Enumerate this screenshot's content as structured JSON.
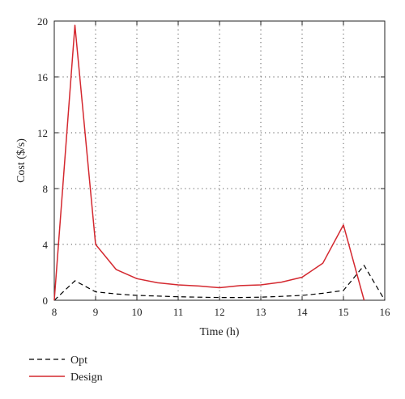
{
  "chart_data": {
    "type": "line",
    "title": "",
    "xlabel": "Time (h)",
    "ylabel": "Cost ($/s)",
    "xlim": [
      8,
      16
    ],
    "ylim": [
      0,
      20
    ],
    "xticks": [
      8,
      9,
      10,
      11,
      12,
      13,
      14,
      15,
      16
    ],
    "yticks": [
      0,
      4,
      8,
      12,
      16,
      20
    ],
    "grid": true,
    "legend_position": "below-left",
    "series": [
      {
        "name": "Opt",
        "color": "#000000",
        "style": "dashed",
        "x": [
          8,
          8.5,
          9,
          9.5,
          10,
          10.5,
          11,
          11.5,
          12,
          12.5,
          13,
          13.5,
          14,
          14.5,
          15,
          15.5,
          16
        ],
        "y": [
          0,
          1.4,
          0.6,
          0.45,
          0.35,
          0.3,
          0.25,
          0.22,
          0.2,
          0.2,
          0.22,
          0.28,
          0.35,
          0.5,
          0.7,
          2.5,
          0
        ]
      },
      {
        "name": "Design",
        "color": "#d4282f",
        "style": "solid",
        "x": [
          8,
          8.5,
          9,
          9.5,
          10,
          10.5,
          11,
          11.5,
          12,
          12.5,
          13,
          13.5,
          14,
          14.5,
          15,
          15.5
        ],
        "y": [
          0,
          19.7,
          4.0,
          2.2,
          1.55,
          1.25,
          1.1,
          1.02,
          0.9,
          1.05,
          1.1,
          1.3,
          1.65,
          2.65,
          5.4,
          0
        ]
      }
    ]
  }
}
